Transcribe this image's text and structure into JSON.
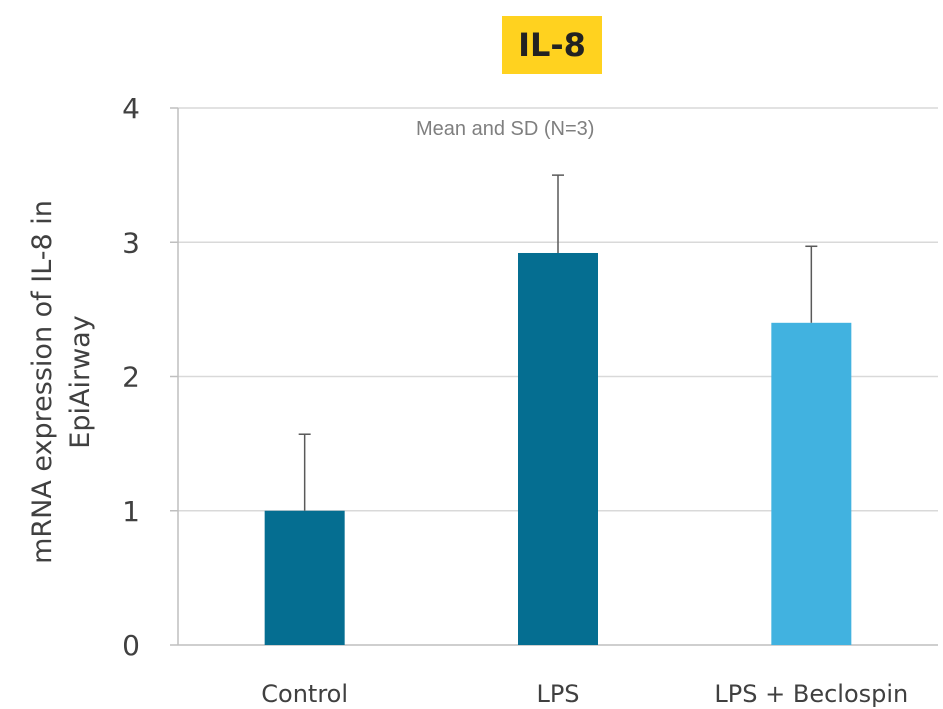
{
  "chart_data": {
    "type": "bar",
    "title": "IL-8",
    "subtitle": "Mean and SD (N=3)",
    "xlabel": "",
    "ylabel_lines": [
      "mRNA expression of IL-8 in",
      "EpiAirway"
    ],
    "categories": [
      "Control",
      "LPS",
      "LPS + Beclospin"
    ],
    "values": [
      1.0,
      2.92,
      2.4
    ],
    "errors": [
      0.57,
      0.58,
      0.57
    ],
    "bar_colors": [
      "#056E91",
      "#056E91",
      "#41B2E0"
    ],
    "ylim": [
      0,
      4
    ],
    "yticks": [
      0,
      1,
      2,
      3,
      4
    ],
    "grid": true,
    "title_highlight_color": "#FFD21F"
  }
}
